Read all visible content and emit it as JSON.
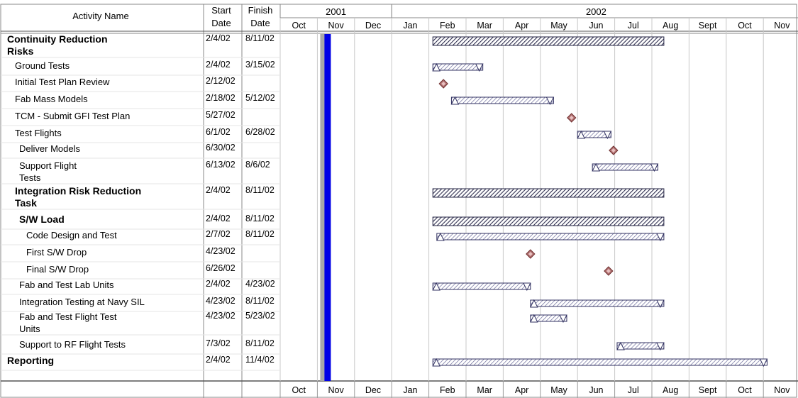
{
  "header": {
    "activity_name": "Activity Name",
    "start_line1": "Start",
    "start_line2": "Date",
    "finish_line1": "Finish",
    "finish_line2": "Date",
    "years": [
      "2001",
      "2002"
    ]
  },
  "months": [
    "Oct",
    "Nov",
    "Dec",
    "Jan",
    "Feb",
    "Mar",
    "Apr",
    "May",
    "Jun",
    "Jul",
    "Aug",
    "Sept",
    "Oct",
    "Nov"
  ],
  "colors": {
    "grid": "#c8c8c8",
    "today_marker": "#0000e6",
    "today_shadow": "#a8a8a8",
    "summary_fill": "#6a6a8a",
    "task_fill": "#a0a0c8",
    "milestone_fill": "#b07070"
  },
  "chart_data": {
    "type": "gantt",
    "timeline_start": "2001-10",
    "timeline_end": "2002-11",
    "current_marker": "2001-11",
    "tasks": [
      {
        "name": "Continuity Reduction\nRisks",
        "start": "2/4/02",
        "finish": "8/11/02",
        "kind": "summary",
        "level": 0,
        "bold": true
      },
      {
        "name": "Ground Tests",
        "start": "2/4/02",
        "finish": "3/15/02",
        "kind": "task",
        "level": 1,
        "bold": false
      },
      {
        "name": "Initial Test Plan Review",
        "start": "2/12/02",
        "finish": "",
        "kind": "milestone",
        "level": 1,
        "bold": false
      },
      {
        "name": "Fab Mass Models",
        "start": "2/18/02",
        "finish": "5/12/02",
        "kind": "task",
        "level": 1,
        "bold": false
      },
      {
        "name": "TCM - Submit GFI Test Plan",
        "start": "5/27/02",
        "finish": "",
        "kind": "milestone",
        "level": 1,
        "bold": false
      },
      {
        "name": "Test Flights",
        "start": "6/1/02",
        "finish": "6/28/02",
        "kind": "task",
        "level": 1,
        "bold": false
      },
      {
        "name": "Deliver Models",
        "start": "6/30/02",
        "finish": "",
        "kind": "milestone",
        "level": 2,
        "bold": false
      },
      {
        "name": "Support Flight\nTests",
        "start": "6/13/02",
        "finish": "8/6/02",
        "kind": "task",
        "level": 2,
        "bold": false
      },
      {
        "name": "Integration Risk Reduction\nTask",
        "start": "2/4/02",
        "finish": "8/11/02",
        "kind": "summary",
        "level": 1,
        "bold": true
      },
      {
        "name": "S/W Load",
        "start": "2/4/02",
        "finish": "8/11/02",
        "kind": "summary",
        "level": 2,
        "bold": true
      },
      {
        "name": "Code Design and Test",
        "start": "2/7/02",
        "finish": "8/11/02",
        "kind": "task",
        "level": 3,
        "bold": false
      },
      {
        "name": "First S/W Drop",
        "start": "4/23/02",
        "finish": "",
        "kind": "milestone",
        "level": 3,
        "bold": false
      },
      {
        "name": "Final S/W Drop",
        "start": "6/26/02",
        "finish": "",
        "kind": "milestone",
        "level": 3,
        "bold": false
      },
      {
        "name": "Fab and Test Lab Units",
        "start": "2/4/02",
        "finish": "4/23/02",
        "kind": "task",
        "level": 2,
        "bold": false
      },
      {
        "name": "Integration Testing at Navy SIL",
        "start": "4/23/02",
        "finish": "8/11/02",
        "kind": "task",
        "level": 2,
        "bold": false
      },
      {
        "name": "Fab and Test Flight Test\nUnits",
        "start": "4/23/02",
        "finish": "5/23/02",
        "kind": "task",
        "level": 2,
        "bold": false
      },
      {
        "name": "Support to RF Flight Tests",
        "start": "7/3/02",
        "finish": "8/11/02",
        "kind": "task",
        "level": 2,
        "bold": false
      },
      {
        "name": "Reporting",
        "start": "2/4/02",
        "finish": "11/4/02",
        "kind": "task",
        "level": 0,
        "bold": true
      }
    ]
  }
}
